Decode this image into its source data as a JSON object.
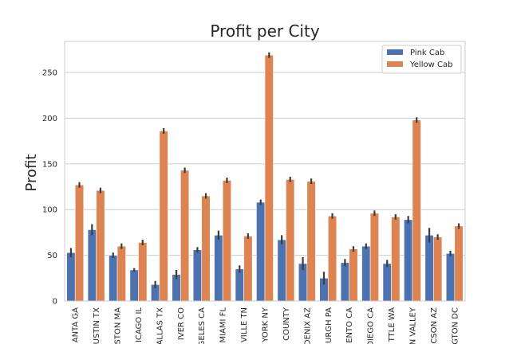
{
  "chart_data": {
    "type": "bar",
    "title": "Profit per City",
    "xlabel": "",
    "ylabel": "Profit",
    "ylim": [
      0,
      284
    ],
    "yticks": [
      0,
      50,
      100,
      150,
      200,
      250
    ],
    "grid": "horizontal",
    "legend_position": "top-right",
    "categories": [
      "ATLANTA GA",
      "AUSTIN TX",
      "BOSTON MA",
      "CHICAGO IL",
      "DALLAS TX",
      "DENVER CO",
      "LOS ANGELES CA",
      "MIAMI FL",
      "NASHVILLE TN",
      "NEW YORK NY",
      "ORANGE COUNTY",
      "PHOENIX AZ",
      "PITTSBURGH PA",
      "SACRAMENTO CA",
      "SAN DIEGO CA",
      "SEATTLE WA",
      "SILICON VALLEY",
      "TUCSON AZ",
      "WASHINGTON DC"
    ],
    "category_labels_visible": [
      "ANTA GA",
      "USTIN TX",
      "STON MA",
      "ICAGO IL",
      "ALLAS TX",
      "IVER CO",
      "GELES CA",
      "MIAMI FL",
      "VILLE TN",
      "YORK NY",
      "COUNTY",
      "DENIX AZ",
      "URGH PA",
      "ENTO CA",
      "DIEGO CA",
      "TTLE WA",
      "N VALLEY",
      "CSON AZ",
      "GTON DC"
    ],
    "series": [
      {
        "name": "Pink Cab",
        "color": "#4c72b0",
        "values": [
          53,
          78,
          50,
          34,
          18,
          29,
          56,
          72,
          35,
          108,
          67,
          41,
          25,
          42,
          60,
          41,
          89,
          72,
          52
        ],
        "error": [
          5,
          6,
          3,
          2,
          4,
          5,
          3,
          5,
          4,
          3,
          5,
          7,
          7,
          4,
          3,
          4,
          4,
          8,
          3
        ]
      },
      {
        "name": "Yellow Cab",
        "color": "#dd8452",
        "values": [
          127,
          121,
          60,
          64,
          186,
          143,
          115,
          132,
          71,
          269,
          133,
          131,
          93,
          57,
          96,
          92,
          198,
          70,
          82
        ]
      }
    ]
  }
}
